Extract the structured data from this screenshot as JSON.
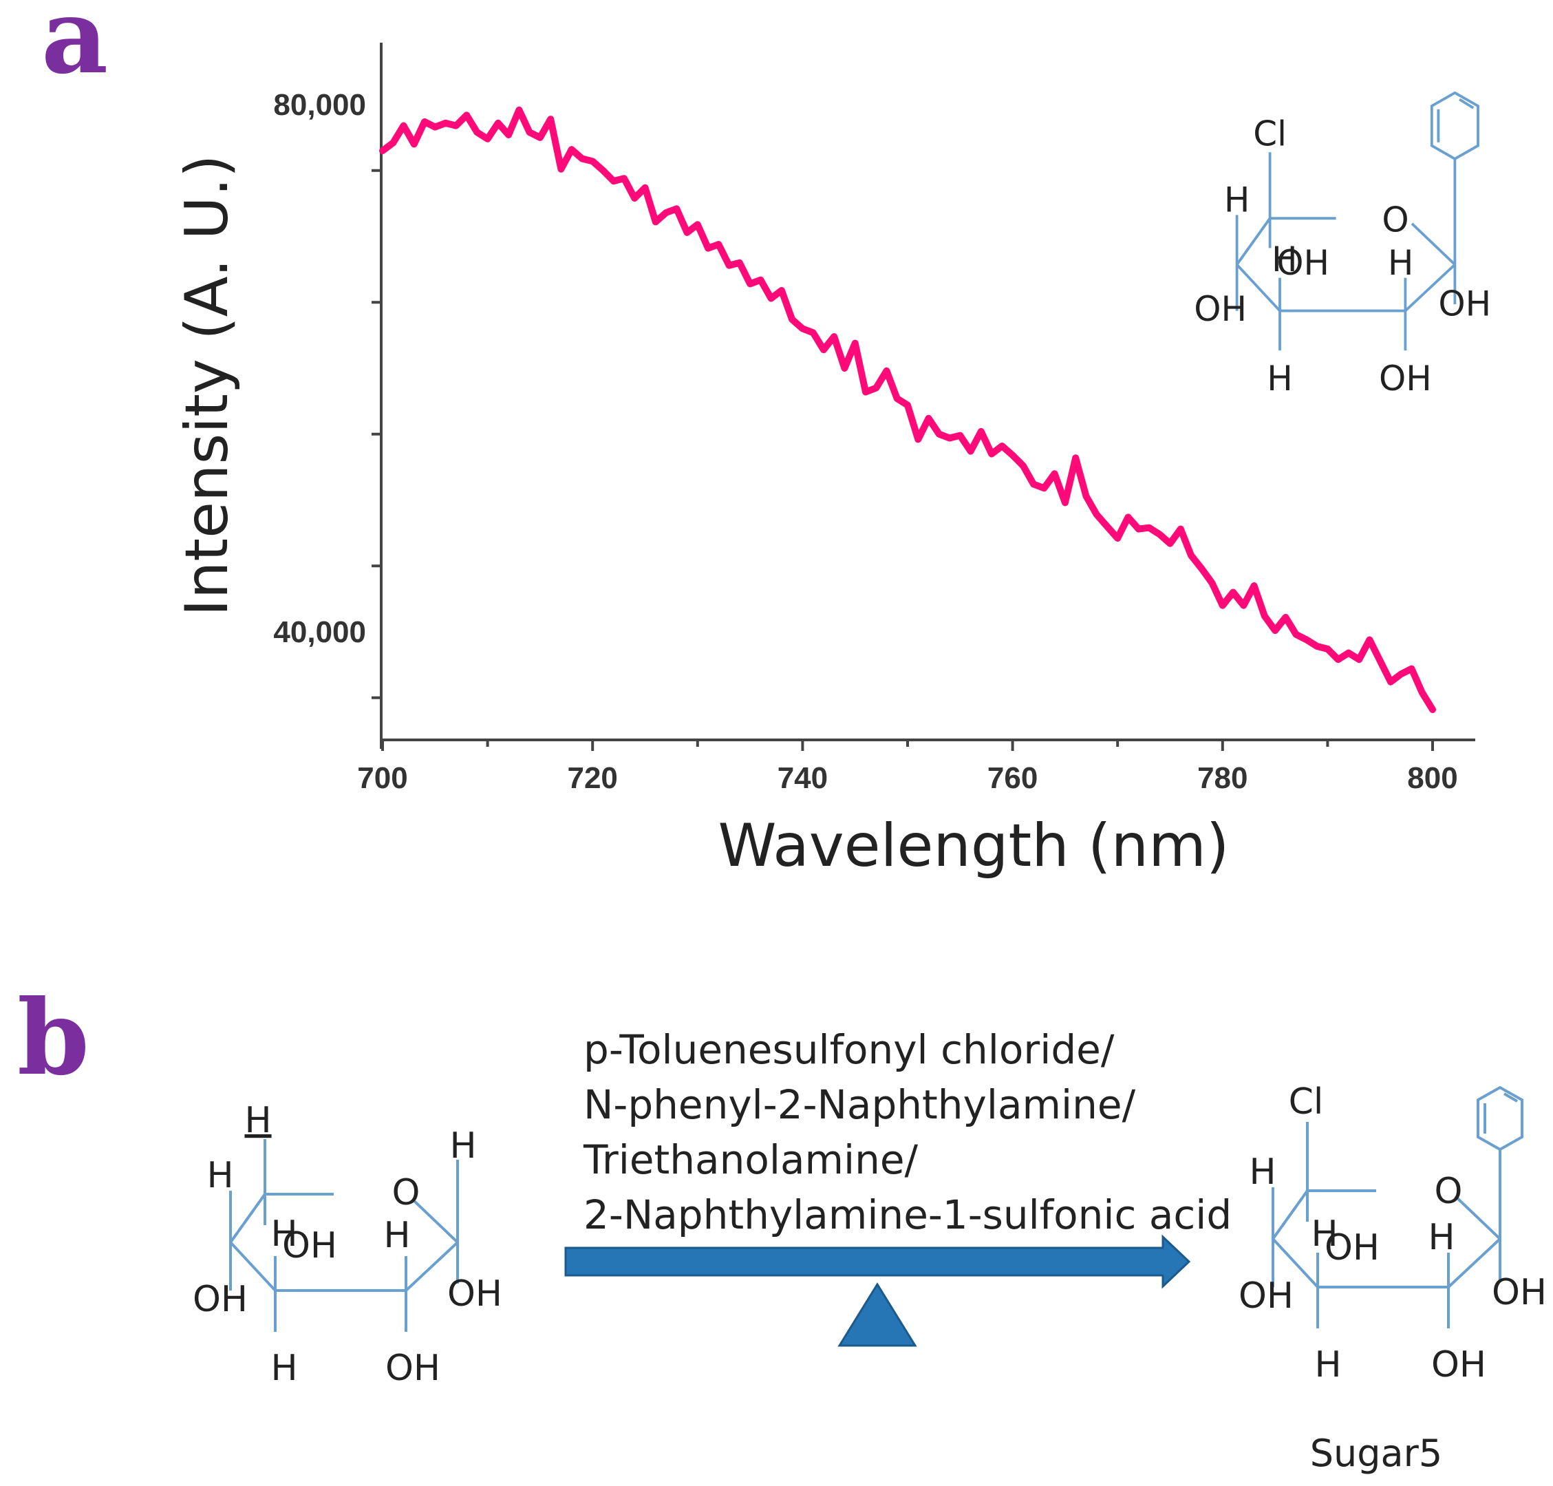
{
  "panel_a": {
    "letter": "a"
  },
  "panel_b": {
    "letter": "b",
    "reagents": [
      "p-Toluenesulfonyl chloride/",
      "N-phenyl-2-Naphthylamine/",
      "Triethanolamine/",
      "2-Naphthylamine-1-sulfonic acid"
    ],
    "product_label": "Sugar5"
  },
  "molecule_reactant": {
    "labels": [
      "H",
      "H",
      "H",
      "O",
      "H",
      "OH",
      "H",
      "OH",
      "OH",
      "H",
      "OH"
    ]
  },
  "molecule_product": {
    "labels": [
      "Cl",
      "H",
      "H",
      "O",
      "H",
      "OH",
      "OH",
      "OH",
      "H",
      "OH"
    ]
  },
  "colors": {
    "line": "#ff0a78",
    "panel_letter": "#7b2f9e",
    "molecule": "#6aa0d0",
    "arrow": "#2675b4"
  },
  "chart_data": {
    "type": "line",
    "xlabel": "Wavelength (nm)",
    "ylabel": "Intensity (A. U.)",
    "xlim": [
      700,
      800
    ],
    "ylim": [
      31800,
      84700
    ],
    "x_ticks": [
      700,
      720,
      740,
      760,
      780,
      800
    ],
    "y_ticks": [
      40000,
      80000
    ],
    "y_tick_labels": [
      "40,000",
      "80,000"
    ],
    "series": [
      {
        "x": [
          700,
          701,
          702,
          703,
          704,
          705,
          706,
          707,
          708,
          709,
          710,
          711,
          712,
          713,
          714,
          715,
          716,
          717,
          718,
          719,
          720,
          721,
          722,
          723,
          724,
          725,
          726,
          727,
          728,
          729,
          730,
          731,
          732,
          733,
          734,
          735,
          736,
          737,
          738,
          739,
          740,
          741,
          742,
          743,
          744,
          745,
          746,
          747,
          748,
          749,
          750,
          751,
          752,
          753,
          754,
          755,
          756,
          757,
          758,
          759,
          760,
          761,
          762,
          763,
          764,
          765,
          766,
          767,
          768,
          769,
          770,
          771,
          772,
          773,
          774,
          775,
          776,
          777,
          778,
          779,
          780,
          781,
          782,
          783,
          784,
          785,
          786,
          787,
          788,
          789,
          790,
          791,
          792,
          793,
          794,
          795,
          796,
          797,
          798,
          799,
          800
        ],
        "values": [
          76500,
          77100,
          78400,
          77000,
          78700,
          78300,
          78600,
          78400,
          79200,
          77900,
          77400,
          78600,
          77700,
          79600,
          77900,
          77500,
          78900,
          75100,
          76600,
          75900,
          75700,
          75000,
          74200,
          74400,
          72900,
          73700,
          71100,
          71800,
          72100,
          70300,
          70900,
          69100,
          69400,
          67800,
          68000,
          66400,
          66700,
          65300,
          65900,
          63700,
          63000,
          62700,
          61400,
          62400,
          60000,
          61900,
          58200,
          58500,
          59800,
          57700,
          57200,
          54600,
          56200,
          55000,
          54700,
          54900,
          53700,
          55200,
          53500,
          54100,
          53400,
          52600,
          51200,
          50900,
          52000,
          49800,
          53200,
          50300,
          48900,
          48000,
          47100,
          48700,
          47800,
          47900,
          47400,
          46700,
          47800,
          45800,
          44800,
          43700,
          42000,
          43000,
          42000,
          43500,
          41200,
          40100,
          41100,
          39800,
          39400,
          38900,
          38700,
          37900,
          38400,
          37900,
          39400,
          37800,
          36200,
          36800,
          37200,
          35400,
          34100
        ]
      }
    ]
  }
}
